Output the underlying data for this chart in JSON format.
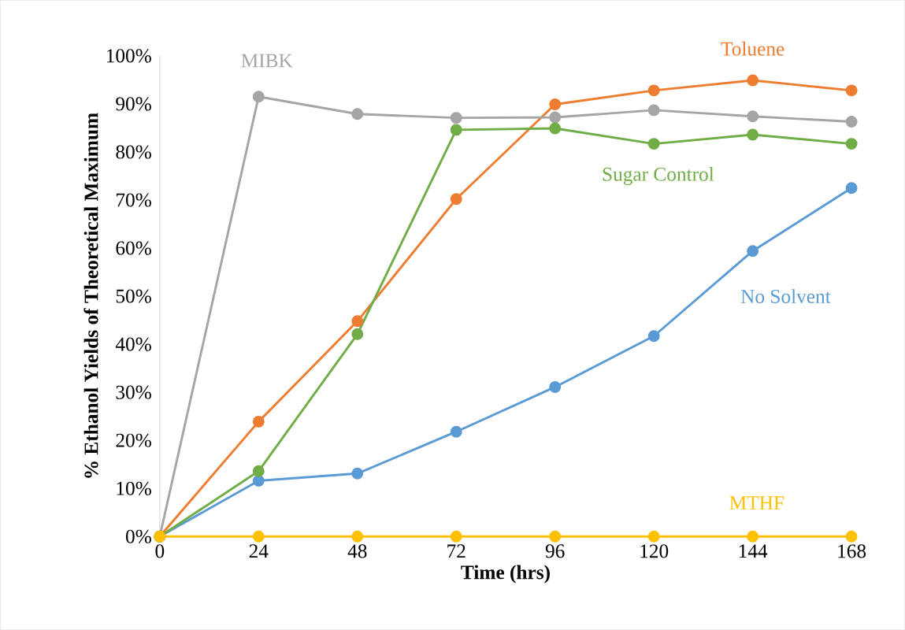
{
  "chart_data": {
    "type": "line",
    "xlabel": "Time (hrs)",
    "ylabel": "% Ethanol Yields of Theoretical Maximum",
    "x": [
      0,
      24,
      48,
      72,
      96,
      120,
      144,
      168
    ],
    "xlim": [
      0,
      168
    ],
    "xticks": [
      0,
      24,
      48,
      72,
      96,
      120,
      144,
      168
    ],
    "ylim": [
      0,
      100
    ],
    "yticks": [
      {
        "value": 0,
        "label": "0%"
      },
      {
        "value": 10,
        "label": "10%"
      },
      {
        "value": 20,
        "label": "20%"
      },
      {
        "value": 30,
        "label": "30%"
      },
      {
        "value": 40,
        "label": "40%"
      },
      {
        "value": 50,
        "label": "50%"
      },
      {
        "value": 60,
        "label": "60%"
      },
      {
        "value": 70,
        "label": "70%"
      },
      {
        "value": 80,
        "label": "80%"
      },
      {
        "value": 90,
        "label": "90%"
      },
      {
        "value": 100,
        "label": "100%"
      }
    ],
    "marker": "circle",
    "line_style": "solid",
    "legend": false,
    "grid": false,
    "series": [
      {
        "name": "No Solvent",
        "color": "#5b9bd5",
        "values": [
          0,
          11.6,
          13.1,
          21.8,
          31.1,
          41.7,
          59.4,
          72.5
        ]
      },
      {
        "name": "Toluene",
        "color": "#ed7d31",
        "values": [
          0,
          23.9,
          44.8,
          70.2,
          89.9,
          92.8,
          94.9,
          92.8
        ]
      },
      {
        "name": "MIBK",
        "color": "#a5a5a5",
        "values": [
          0,
          91.5,
          87.9,
          87.1,
          87.2,
          88.7,
          87.4,
          86.3
        ]
      },
      {
        "name": "Sugar Control",
        "color": "#70ad47",
        "values": [
          0,
          13.6,
          42.1,
          84.6,
          84.9,
          81.7,
          83.6,
          81.7
        ]
      },
      {
        "name": "MTHF",
        "color": "#ffc000",
        "values": [
          0,
          0,
          0,
          0,
          0,
          0,
          0,
          0
        ]
      }
    ]
  }
}
